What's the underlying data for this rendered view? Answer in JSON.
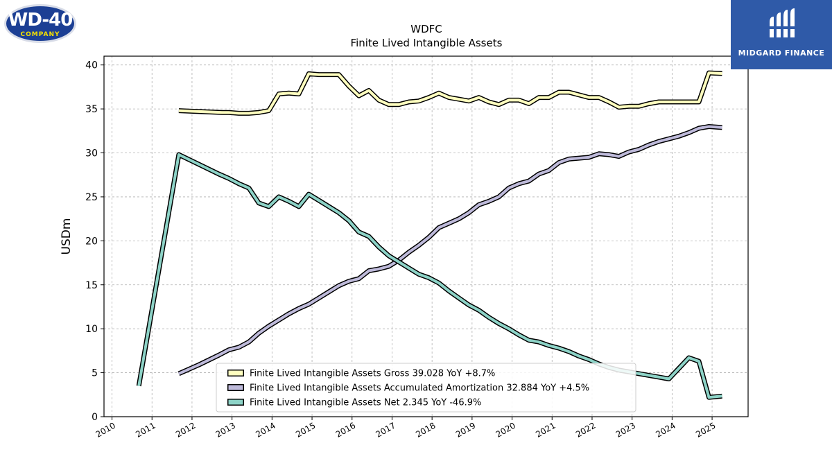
{
  "brand": {
    "left_logo": "WD-40 COMPANY",
    "left_logo_main": "WD-40",
    "left_logo_sub": "COMPANY",
    "right_logo": "MIDGARD FINANCE"
  },
  "chart_data": {
    "type": "line",
    "title": "WDFC",
    "subtitle": "Finite Lived Intangible Assets",
    "xlabel": "",
    "ylabel": "USDm",
    "xlim": [
      2009.8,
      2025.9
    ],
    "ylim": [
      0,
      41
    ],
    "x_ticks": [
      "2010",
      "2011",
      "2012",
      "2013",
      "2014",
      "2015",
      "2016",
      "2017",
      "2018",
      "2019",
      "2020",
      "2021",
      "2022",
      "2023",
      "2024",
      "2025"
    ],
    "y_ticks": [
      0,
      5,
      10,
      15,
      20,
      25,
      30,
      35,
      40
    ],
    "grid": true,
    "legend_position": "lower-center",
    "series": [
      {
        "name": "Finite Lived Intangible Assets Gross",
        "legend_label": "Finite Lived Intangible Assets Gross  39.028 YoY +8.7%",
        "color": "#ffffbf",
        "points": [
          [
            2011.67,
            34.8
          ],
          [
            2012.75,
            34.6
          ],
          [
            2012.92,
            34.6
          ],
          [
            2013.17,
            34.5
          ],
          [
            2013.42,
            34.5
          ],
          [
            2013.67,
            34.6
          ],
          [
            2013.92,
            34.8
          ],
          [
            2014.17,
            36.7
          ],
          [
            2014.42,
            36.8
          ],
          [
            2014.67,
            36.7
          ],
          [
            2014.92,
            39.0
          ],
          [
            2015.17,
            38.9
          ],
          [
            2015.42,
            38.9
          ],
          [
            2015.67,
            38.9
          ],
          [
            2015.92,
            37.6
          ],
          [
            2016.17,
            36.5
          ],
          [
            2016.42,
            37.1
          ],
          [
            2016.67,
            36.0
          ],
          [
            2016.92,
            35.5
          ],
          [
            2017.17,
            35.5
          ],
          [
            2017.42,
            35.8
          ],
          [
            2017.67,
            35.9
          ],
          [
            2017.92,
            36.3
          ],
          [
            2018.17,
            36.8
          ],
          [
            2018.42,
            36.3
          ],
          [
            2018.67,
            36.1
          ],
          [
            2018.92,
            35.9
          ],
          [
            2019.17,
            36.3
          ],
          [
            2019.42,
            35.8
          ],
          [
            2019.67,
            35.5
          ],
          [
            2019.92,
            36.0
          ],
          [
            2020.17,
            36.0
          ],
          [
            2020.42,
            35.6
          ],
          [
            2020.67,
            36.3
          ],
          [
            2020.92,
            36.3
          ],
          [
            2021.17,
            36.9
          ],
          [
            2021.42,
            36.9
          ],
          [
            2021.67,
            36.6
          ],
          [
            2021.92,
            36.3
          ],
          [
            2022.17,
            36.3
          ],
          [
            2022.42,
            35.8
          ],
          [
            2022.67,
            35.2
          ],
          [
            2022.92,
            35.3
          ],
          [
            2023.17,
            35.3
          ],
          [
            2023.42,
            35.6
          ],
          [
            2023.67,
            35.8
          ],
          [
            2023.92,
            35.8
          ],
          [
            2024.17,
            35.8
          ],
          [
            2024.42,
            35.8
          ],
          [
            2024.67,
            35.8
          ],
          [
            2024.92,
            39.1
          ],
          [
            2025.25,
            39.028
          ]
        ]
      },
      {
        "name": "Finite Lived Intangible Assets Accumulated Amortization",
        "legend_label": "Finite Lived Intangible Assets Accumulated Amortization  32.884 YoY +4.5%",
        "color": "#bebada",
        "points": [
          [
            2011.67,
            4.9
          ],
          [
            2012.17,
            5.9
          ],
          [
            2012.67,
            7.0
          ],
          [
            2012.92,
            7.6
          ],
          [
            2013.17,
            7.9
          ],
          [
            2013.42,
            8.5
          ],
          [
            2013.67,
            9.5
          ],
          [
            2013.92,
            10.3
          ],
          [
            2014.17,
            11.0
          ],
          [
            2014.42,
            11.7
          ],
          [
            2014.67,
            12.3
          ],
          [
            2014.92,
            12.8
          ],
          [
            2015.17,
            13.5
          ],
          [
            2015.42,
            14.2
          ],
          [
            2015.67,
            14.9
          ],
          [
            2015.92,
            15.4
          ],
          [
            2016.17,
            15.7
          ],
          [
            2016.42,
            16.6
          ],
          [
            2016.67,
            16.8
          ],
          [
            2016.92,
            17.1
          ],
          [
            2017.17,
            17.8
          ],
          [
            2017.42,
            18.7
          ],
          [
            2017.67,
            19.5
          ],
          [
            2017.92,
            20.4
          ],
          [
            2018.17,
            21.5
          ],
          [
            2018.42,
            22.0
          ],
          [
            2018.67,
            22.5
          ],
          [
            2018.92,
            23.2
          ],
          [
            2019.17,
            24.1
          ],
          [
            2019.42,
            24.5
          ],
          [
            2019.67,
            25.0
          ],
          [
            2019.92,
            26.0
          ],
          [
            2020.17,
            26.5
          ],
          [
            2020.42,
            26.8
          ],
          [
            2020.67,
            27.6
          ],
          [
            2020.92,
            28.0
          ],
          [
            2021.17,
            28.9
          ],
          [
            2021.42,
            29.3
          ],
          [
            2021.67,
            29.4
          ],
          [
            2021.92,
            29.5
          ],
          [
            2022.17,
            29.9
          ],
          [
            2022.42,
            29.8
          ],
          [
            2022.67,
            29.6
          ],
          [
            2022.92,
            30.1
          ],
          [
            2023.17,
            30.4
          ],
          [
            2023.42,
            30.9
          ],
          [
            2023.67,
            31.3
          ],
          [
            2023.92,
            31.6
          ],
          [
            2024.17,
            31.9
          ],
          [
            2024.42,
            32.3
          ],
          [
            2024.67,
            32.8
          ],
          [
            2024.92,
            33.0
          ],
          [
            2025.25,
            32.884
          ]
        ]
      },
      {
        "name": "Finite Lived Intangible Assets Net",
        "legend_label": "Finite Lived Intangible Assets Net  2.345 YoY -46.9%",
        "color": "#8dd3c7",
        "points": [
          [
            2010.67,
            3.5
          ],
          [
            2011.67,
            29.8
          ],
          [
            2012.17,
            28.7
          ],
          [
            2012.67,
            27.6
          ],
          [
            2012.92,
            27.1
          ],
          [
            2013.17,
            26.5
          ],
          [
            2013.42,
            26.0
          ],
          [
            2013.67,
            24.3
          ],
          [
            2013.92,
            23.9
          ],
          [
            2014.17,
            25.0
          ],
          [
            2014.42,
            24.5
          ],
          [
            2014.67,
            23.9
          ],
          [
            2014.92,
            25.3
          ],
          [
            2015.17,
            24.6
          ],
          [
            2015.42,
            23.9
          ],
          [
            2015.67,
            23.2
          ],
          [
            2015.92,
            22.3
          ],
          [
            2016.17,
            21.0
          ],
          [
            2016.42,
            20.5
          ],
          [
            2016.67,
            19.3
          ],
          [
            2016.92,
            18.3
          ],
          [
            2017.17,
            17.6
          ],
          [
            2017.42,
            16.9
          ],
          [
            2017.67,
            16.2
          ],
          [
            2017.92,
            15.8
          ],
          [
            2018.17,
            15.2
          ],
          [
            2018.42,
            14.3
          ],
          [
            2018.67,
            13.5
          ],
          [
            2018.92,
            12.7
          ],
          [
            2019.17,
            12.1
          ],
          [
            2019.42,
            11.3
          ],
          [
            2019.67,
            10.6
          ],
          [
            2019.92,
            10.0
          ],
          [
            2020.17,
            9.3
          ],
          [
            2020.42,
            8.7
          ],
          [
            2020.67,
            8.5
          ],
          [
            2020.92,
            8.1
          ],
          [
            2021.17,
            7.8
          ],
          [
            2021.42,
            7.4
          ],
          [
            2021.67,
            6.9
          ],
          [
            2021.92,
            6.5
          ],
          [
            2022.17,
            6.0
          ],
          [
            2022.42,
            5.6
          ],
          [
            2022.67,
            5.3
          ],
          [
            2022.92,
            5.1
          ],
          [
            2023.17,
            4.9
          ],
          [
            2023.42,
            4.7
          ],
          [
            2023.67,
            4.5
          ],
          [
            2023.92,
            4.3
          ],
          [
            2024.17,
            5.5
          ],
          [
            2024.42,
            6.7
          ],
          [
            2024.67,
            6.3
          ],
          [
            2024.92,
            2.2
          ],
          [
            2025.25,
            2.345
          ]
        ]
      }
    ]
  }
}
